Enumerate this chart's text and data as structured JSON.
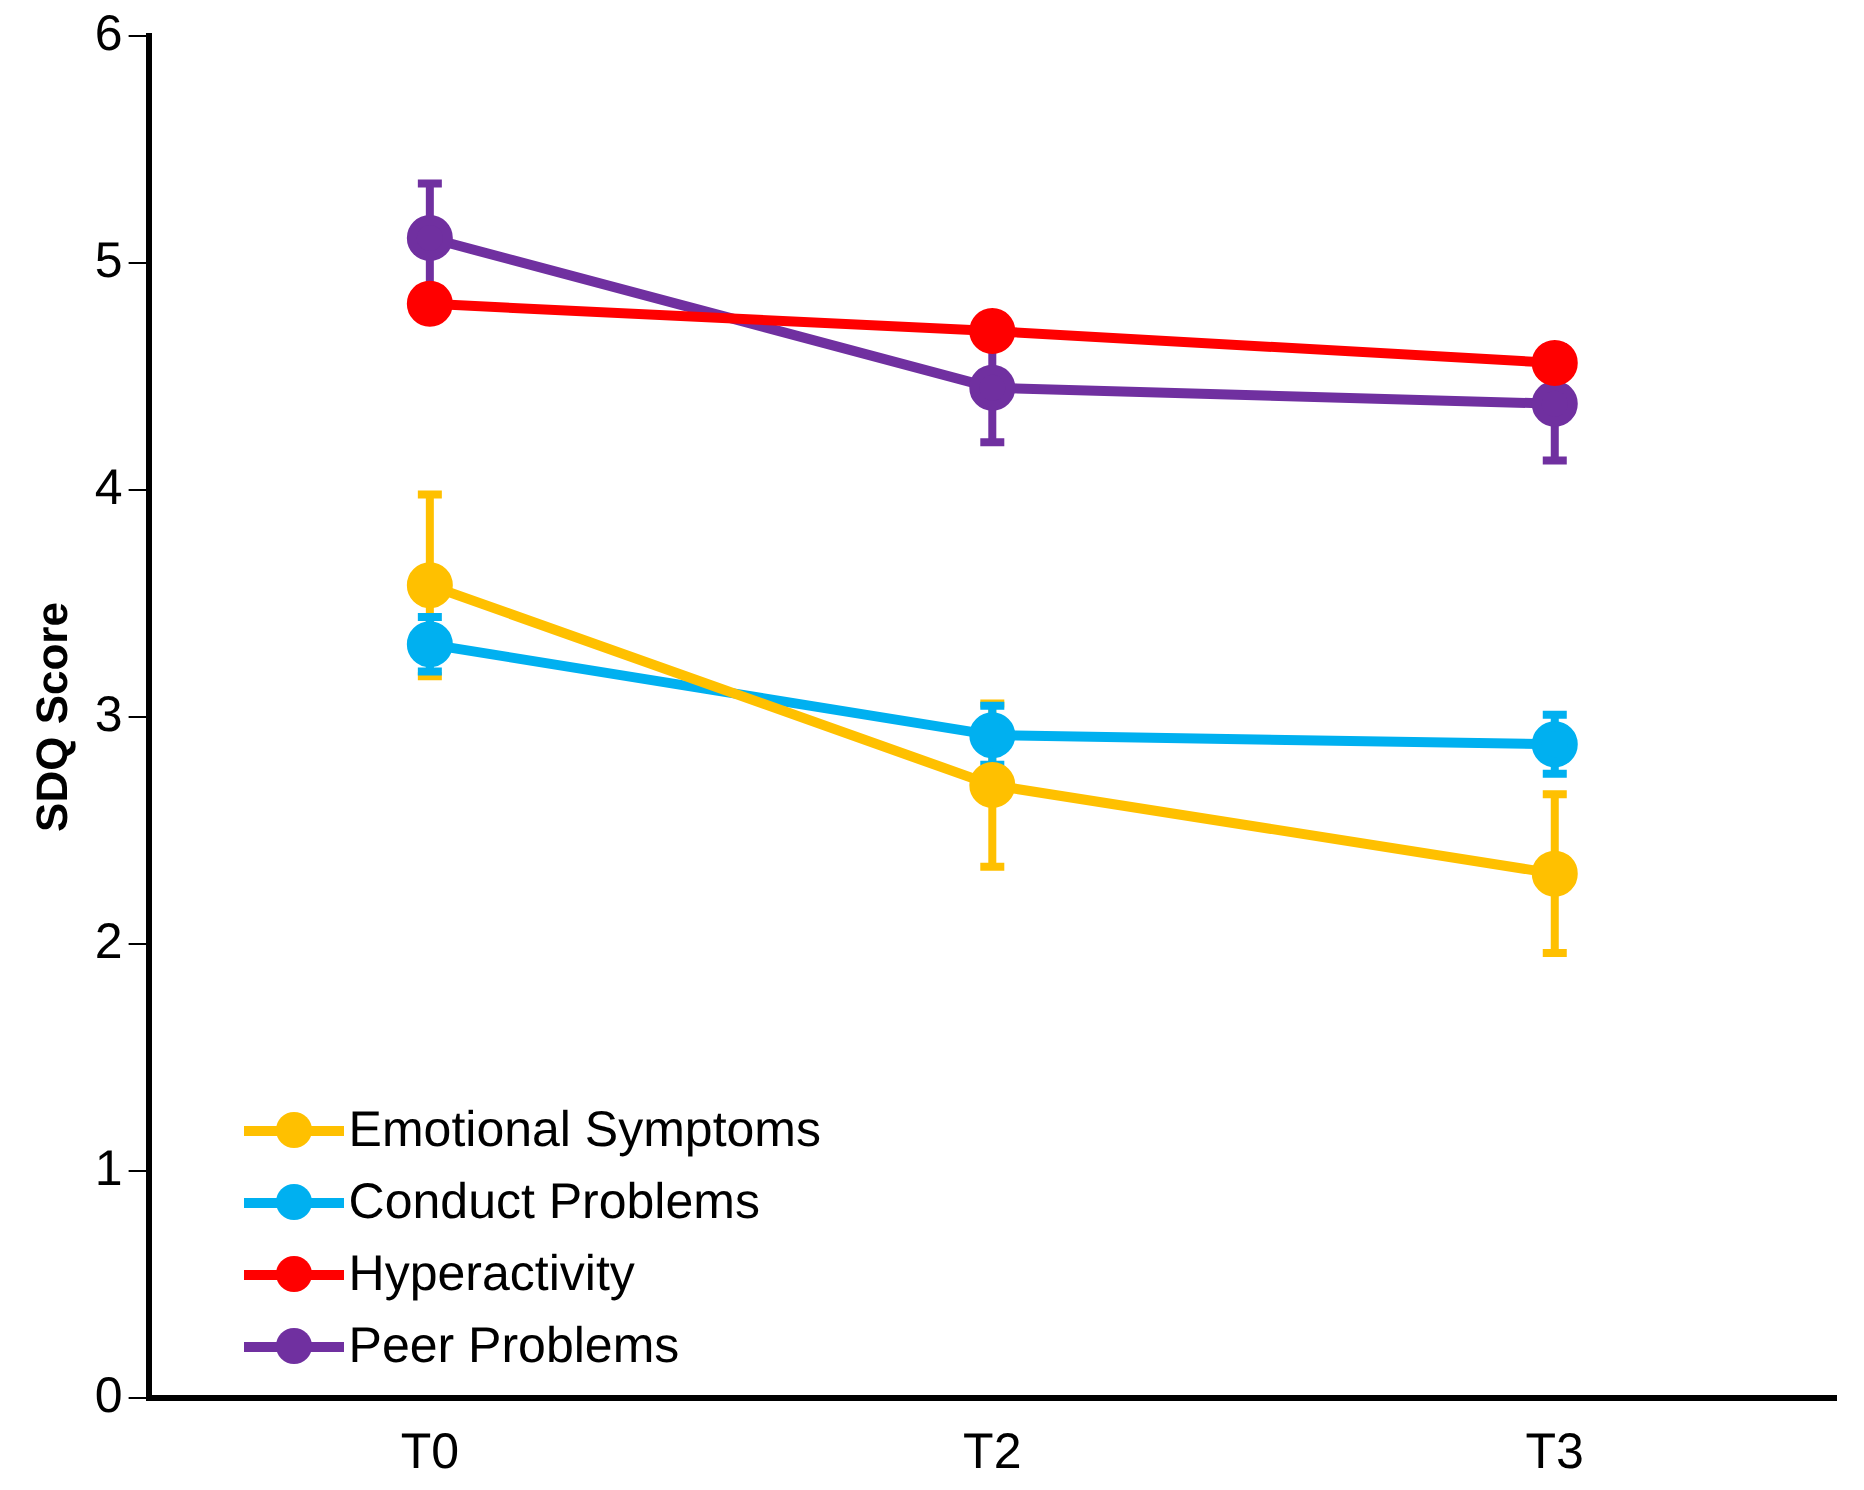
{
  "chart_data": {
    "type": "line",
    "ylabel": "SDQ Score",
    "categories": [
      "T0",
      "T2",
      "T3"
    ],
    "ylim": [
      0,
      6
    ],
    "yticks": [
      0,
      1,
      2,
      3,
      4,
      5,
      6
    ],
    "grid": false,
    "legend": "bottom left",
    "marker": "circle",
    "line_style": "solid",
    "series": [
      {
        "name": "Emotional Symptoms",
        "color": "#ffc000",
        "values": [
          3.58,
          2.7,
          2.31
        ],
        "errors": [
          0.4,
          0.36,
          0.35
        ]
      },
      {
        "name": "Conduct Problems",
        "color": "#00b0f0",
        "values": [
          3.32,
          2.92,
          2.88
        ],
        "errors": [
          0.12,
          0.13,
          0.13
        ]
      },
      {
        "name": "Hyperactivity",
        "color": "#ff0000",
        "values": [
          4.82,
          4.7,
          4.56
        ]
      },
      {
        "name": "Peer Problems",
        "color": "#7030a0",
        "values": [
          5.11,
          4.45,
          4.38
        ],
        "errors": [
          0.24,
          0.24,
          0.25
        ]
      }
    ]
  }
}
